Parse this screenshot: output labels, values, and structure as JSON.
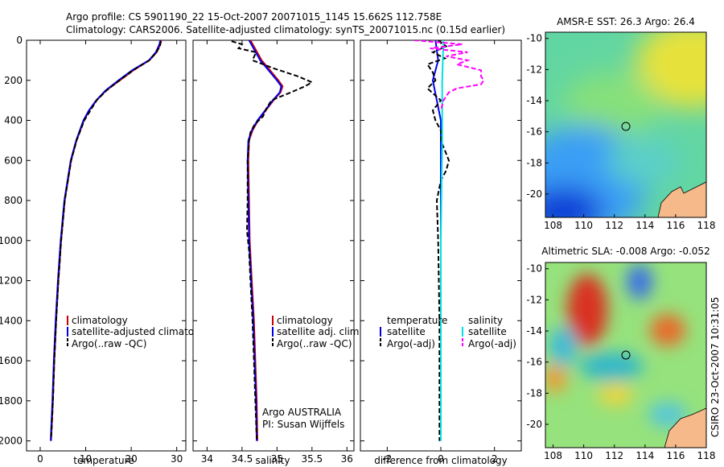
{
  "header": {
    "title_line1": "Argo profile: CS 5901190_22 15-Oct-2007 20071015_1145 15.662S 112.758E",
    "title_line2": "Climatology: CARS2006. Satellite-adjusted climatology: synTS_20071015.nc (0.15d earlier)"
  },
  "colors": {
    "climatology": "#cc0000",
    "satellite": "#0000ee",
    "argo": "#000000",
    "salinity_satellite": "#00e0e0",
    "salinity_argo": "#ff00ff",
    "land": "#f5b98a"
  },
  "chart_data": [
    {
      "id": "temperature",
      "type": "line",
      "xlabel": "temperature",
      "xlim": [
        -3,
        32
      ],
      "ylim": [
        2050,
        0
      ],
      "xticks": [
        0,
        10,
        20,
        30
      ],
      "yticks": [
        0,
        200,
        400,
        600,
        800,
        1000,
        1200,
        1400,
        1600,
        1800,
        2000
      ],
      "legend": [
        "climatology",
        "satellite-adjusted climatology",
        "Argo(..raw -QC)"
      ],
      "series": [
        {
          "name": "climatology",
          "color": "#cc0000",
          "dash": "",
          "depth": [
            0,
            20,
            60,
            100,
            150,
            200,
            250,
            300,
            350,
            400,
            500,
            600,
            800,
            1000,
            1200,
            1400,
            1600,
            1800,
            2000
          ],
          "values": [
            26.6,
            26.4,
            25.6,
            24.0,
            20.5,
            17.5,
            14.5,
            12.4,
            10.8,
            9.6,
            8.0,
            6.8,
            5.4,
            4.6,
            4.0,
            3.5,
            3.1,
            2.8,
            2.4
          ]
        },
        {
          "name": "satellite-adjusted climatology",
          "color": "#0000ee",
          "dash": "",
          "depth": [
            0,
            20,
            60,
            100,
            150,
            200,
            250,
            300,
            350,
            400,
            500,
            600,
            800,
            1000,
            1200,
            1400,
            1600,
            1800,
            2000
          ],
          "values": [
            26.4,
            26.2,
            25.4,
            23.9,
            20.2,
            17.2,
            14.4,
            12.3,
            10.7,
            9.5,
            7.9,
            6.7,
            5.3,
            4.5,
            3.9,
            3.4,
            3.0,
            2.7,
            2.3
          ]
        },
        {
          "name": "Argo(..raw -QC)",
          "color": "#000000",
          "dash": "6,3",
          "depth": [
            5,
            30,
            60,
            100,
            150,
            200,
            250,
            300,
            400,
            500,
            600,
            800,
            1000,
            1200,
            1400,
            1600,
            1800,
            1990
          ],
          "values": [
            26.5,
            26.3,
            25.5,
            24.0,
            20.4,
            17.4,
            14.6,
            12.4,
            9.7,
            8.0,
            6.8,
            5.4,
            4.6,
            4.0,
            3.5,
            3.1,
            2.8,
            2.4
          ]
        }
      ]
    },
    {
      "id": "salinity",
      "type": "line",
      "xlabel": "salinity",
      "xlim": [
        33.8,
        36.1
      ],
      "ylim": [
        2050,
        0
      ],
      "xticks": [
        34,
        34.5,
        35,
        35.5,
        36
      ],
      "legend": [
        "climatology",
        "satellite adj. clim.",
        "Argo(..raw -QC)"
      ],
      "annotation": [
        "Argo AUSTRALIA",
        "PI: Susan Wijffels"
      ],
      "series": [
        {
          "name": "climatology",
          "color": "#cc0000",
          "dash": "",
          "depth": [
            0,
            50,
            100,
            150,
            200,
            230,
            260,
            300,
            350,
            400,
            450,
            500,
            600,
            800,
            1000,
            1200,
            1400,
            1600,
            1800,
            2000
          ],
          "values": [
            34.62,
            34.7,
            34.78,
            34.9,
            35.02,
            35.08,
            35.05,
            34.95,
            34.84,
            34.73,
            34.65,
            34.6,
            34.59,
            34.6,
            34.61,
            34.64,
            34.67,
            34.69,
            34.71,
            34.72
          ]
        },
        {
          "name": "satellite adj. clim.",
          "color": "#0000ee",
          "dash": "",
          "depth": [
            0,
            50,
            100,
            150,
            200,
            230,
            260,
            300,
            350,
            400,
            450,
            500,
            600,
            800,
            1000,
            1200,
            1400,
            1600,
            1800,
            2000
          ],
          "values": [
            34.6,
            34.68,
            34.76,
            34.88,
            35.0,
            35.06,
            35.04,
            34.94,
            34.83,
            34.72,
            34.64,
            34.59,
            34.58,
            34.59,
            34.6,
            34.63,
            34.66,
            34.68,
            34.7,
            34.71
          ]
        },
        {
          "name": "Argo(..raw -QC)",
          "color": "#000000",
          "dash": "6,3",
          "depth": [
            5,
            20,
            40,
            60,
            100,
            140,
            180,
            210,
            230,
            260,
            300,
            340,
            380,
            420,
            460,
            500,
            600,
            800,
            950,
            1050,
            1200,
            1400,
            1600,
            1800,
            1990
          ],
          "values": [
            34.35,
            34.5,
            34.45,
            34.7,
            34.65,
            34.95,
            35.3,
            35.5,
            35.4,
            35.2,
            34.92,
            34.85,
            34.8,
            34.68,
            34.62,
            34.6,
            34.58,
            34.58,
            34.57,
            34.6,
            34.62,
            34.65,
            34.67,
            34.69,
            34.71
          ]
        }
      ]
    },
    {
      "id": "difference",
      "type": "line",
      "xlabel": "difference from climatology",
      "xlim": [
        -3,
        3
      ],
      "ylim": [
        2050,
        0
      ],
      "xticks": [
        -2,
        0,
        2
      ],
      "legend_temperature": [
        "temperature",
        "satellite",
        "Argo(-adj)"
      ],
      "legend_salinity": [
        "salinity",
        "satellite",
        "Argo(-adj)"
      ],
      "series": [
        {
          "name": "temperature satellite",
          "color": "#0000ee",
          "dash": "",
          "depth": [
            0,
            100,
            200,
            400,
            1000,
            2000
          ],
          "values": [
            -0.2,
            -0.1,
            -0.3,
            0.0,
            0.0,
            0.0
          ]
        },
        {
          "name": "temperature Argo(-adj)",
          "color": "#000000",
          "dash": "6,3",
          "depth": [
            0,
            30,
            60,
            90,
            120,
            160,
            200,
            240,
            300,
            350,
            400,
            450,
            500,
            550,
            600,
            650,
            700,
            800,
            1000,
            1400,
            1800,
            2000
          ],
          "values": [
            -0.1,
            0.2,
            -0.3,
            0.15,
            -0.5,
            -0.3,
            -0.2,
            -0.5,
            0.0,
            -0.3,
            -0.2,
            0.0,
            0.0,
            0.15,
            0.3,
            0.2,
            0.0,
            -0.15,
            -0.1,
            -0.05,
            -0.05,
            -0.05
          ]
        },
        {
          "name": "salinity satellite",
          "color": "#00e0e0",
          "dash": "",
          "depth": [
            0,
            200,
            500,
            1000,
            2000
          ],
          "values": [
            0.1,
            0.05,
            0.05,
            0.0,
            0.0
          ]
        },
        {
          "name": "salinity Argo(-adj)",
          "color": "#ff00ff",
          "dash": "6,3",
          "depth": [
            0,
            20,
            40,
            60,
            80,
            100,
            120,
            150,
            180,
            200,
            220,
            240,
            260,
            300,
            350
          ],
          "values": [
            -1.0,
            0.8,
            -0.4,
            1.0,
            0.2,
            1.0,
            0.6,
            1.5,
            1.5,
            1.6,
            1.5,
            0.6,
            0.3,
            0.1,
            0.0
          ]
        }
      ]
    },
    {
      "id": "sst_map",
      "type": "heatmap",
      "title": "AMSR-E SST: 26.3 Argo: 26.4",
      "xlim": [
        107.5,
        118
      ],
      "ylim": [
        -21.5,
        -9.6
      ],
      "xticks": [
        108,
        110,
        112,
        114,
        116,
        118
      ],
      "yticks": [
        -10,
        -12,
        -14,
        -16,
        -18,
        -20
      ],
      "marker": [
        112.758,
        -15.662
      ]
    },
    {
      "id": "sla_map",
      "type": "heatmap",
      "title": "Altimetric SLA: -0.008 Argo: -0.052",
      "xlim": [
        107.5,
        118
      ],
      "ylim": [
        -21.5,
        -9.6
      ],
      "xticks": [
        108,
        110,
        112,
        114,
        116,
        118
      ],
      "yticks": [
        -10,
        -12,
        -14,
        -16,
        -18,
        -20
      ],
      "marker": [
        112.758,
        -15.662
      ]
    }
  ],
  "footer": {
    "stamp": "CSIRO 23-Oct-2007 10:31:05"
  }
}
